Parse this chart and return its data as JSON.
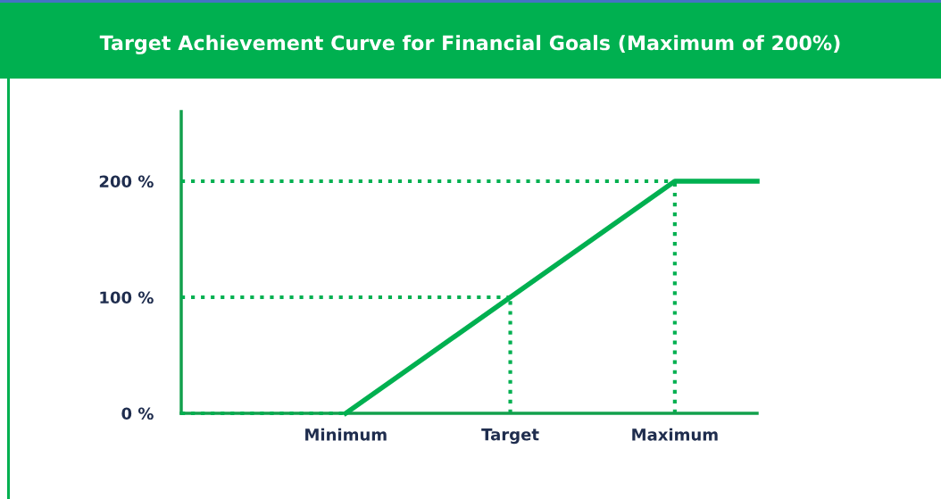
{
  "chart_data": {
    "type": "line",
    "title": "Target Achievement Curve for Financial Goals (Maximum of 200%)",
    "categories": [
      null,
      null,
      "Minimum",
      null,
      "Target",
      null,
      "Maximum",
      null
    ],
    "ylim": [
      0,
      260
    ],
    "yticks": [
      {
        "value": 0,
        "label": "0 %"
      },
      {
        "value": 100,
        "label": "100 %"
      },
      {
        "value": 200,
        "label": "200 %"
      }
    ],
    "grid": false,
    "marker": "none",
    "series": [
      {
        "color": "#00b050",
        "line_style": "solid",
        "values": [
          null,
          null,
          0,
          50,
          100,
          150,
          200,
          200
        ]
      }
    ],
    "ref_lines": [
      {
        "axis": "y",
        "value": 200,
        "color": "#00b050",
        "line_style": "dotted"
      },
      {
        "axis": "y",
        "value": 100,
        "color": "#00b050",
        "line_style": "dotted"
      },
      {
        "axis": "y",
        "value": 0,
        "color": "#00b050",
        "line_style": "dotted"
      },
      {
        "axis": "x",
        "value": "Target",
        "color": "#00b050",
        "line_style": "dotted"
      },
      {
        "axis": "x",
        "value": "Maximum",
        "color": "#00b050",
        "line_style": "dotted"
      }
    ]
  }
}
